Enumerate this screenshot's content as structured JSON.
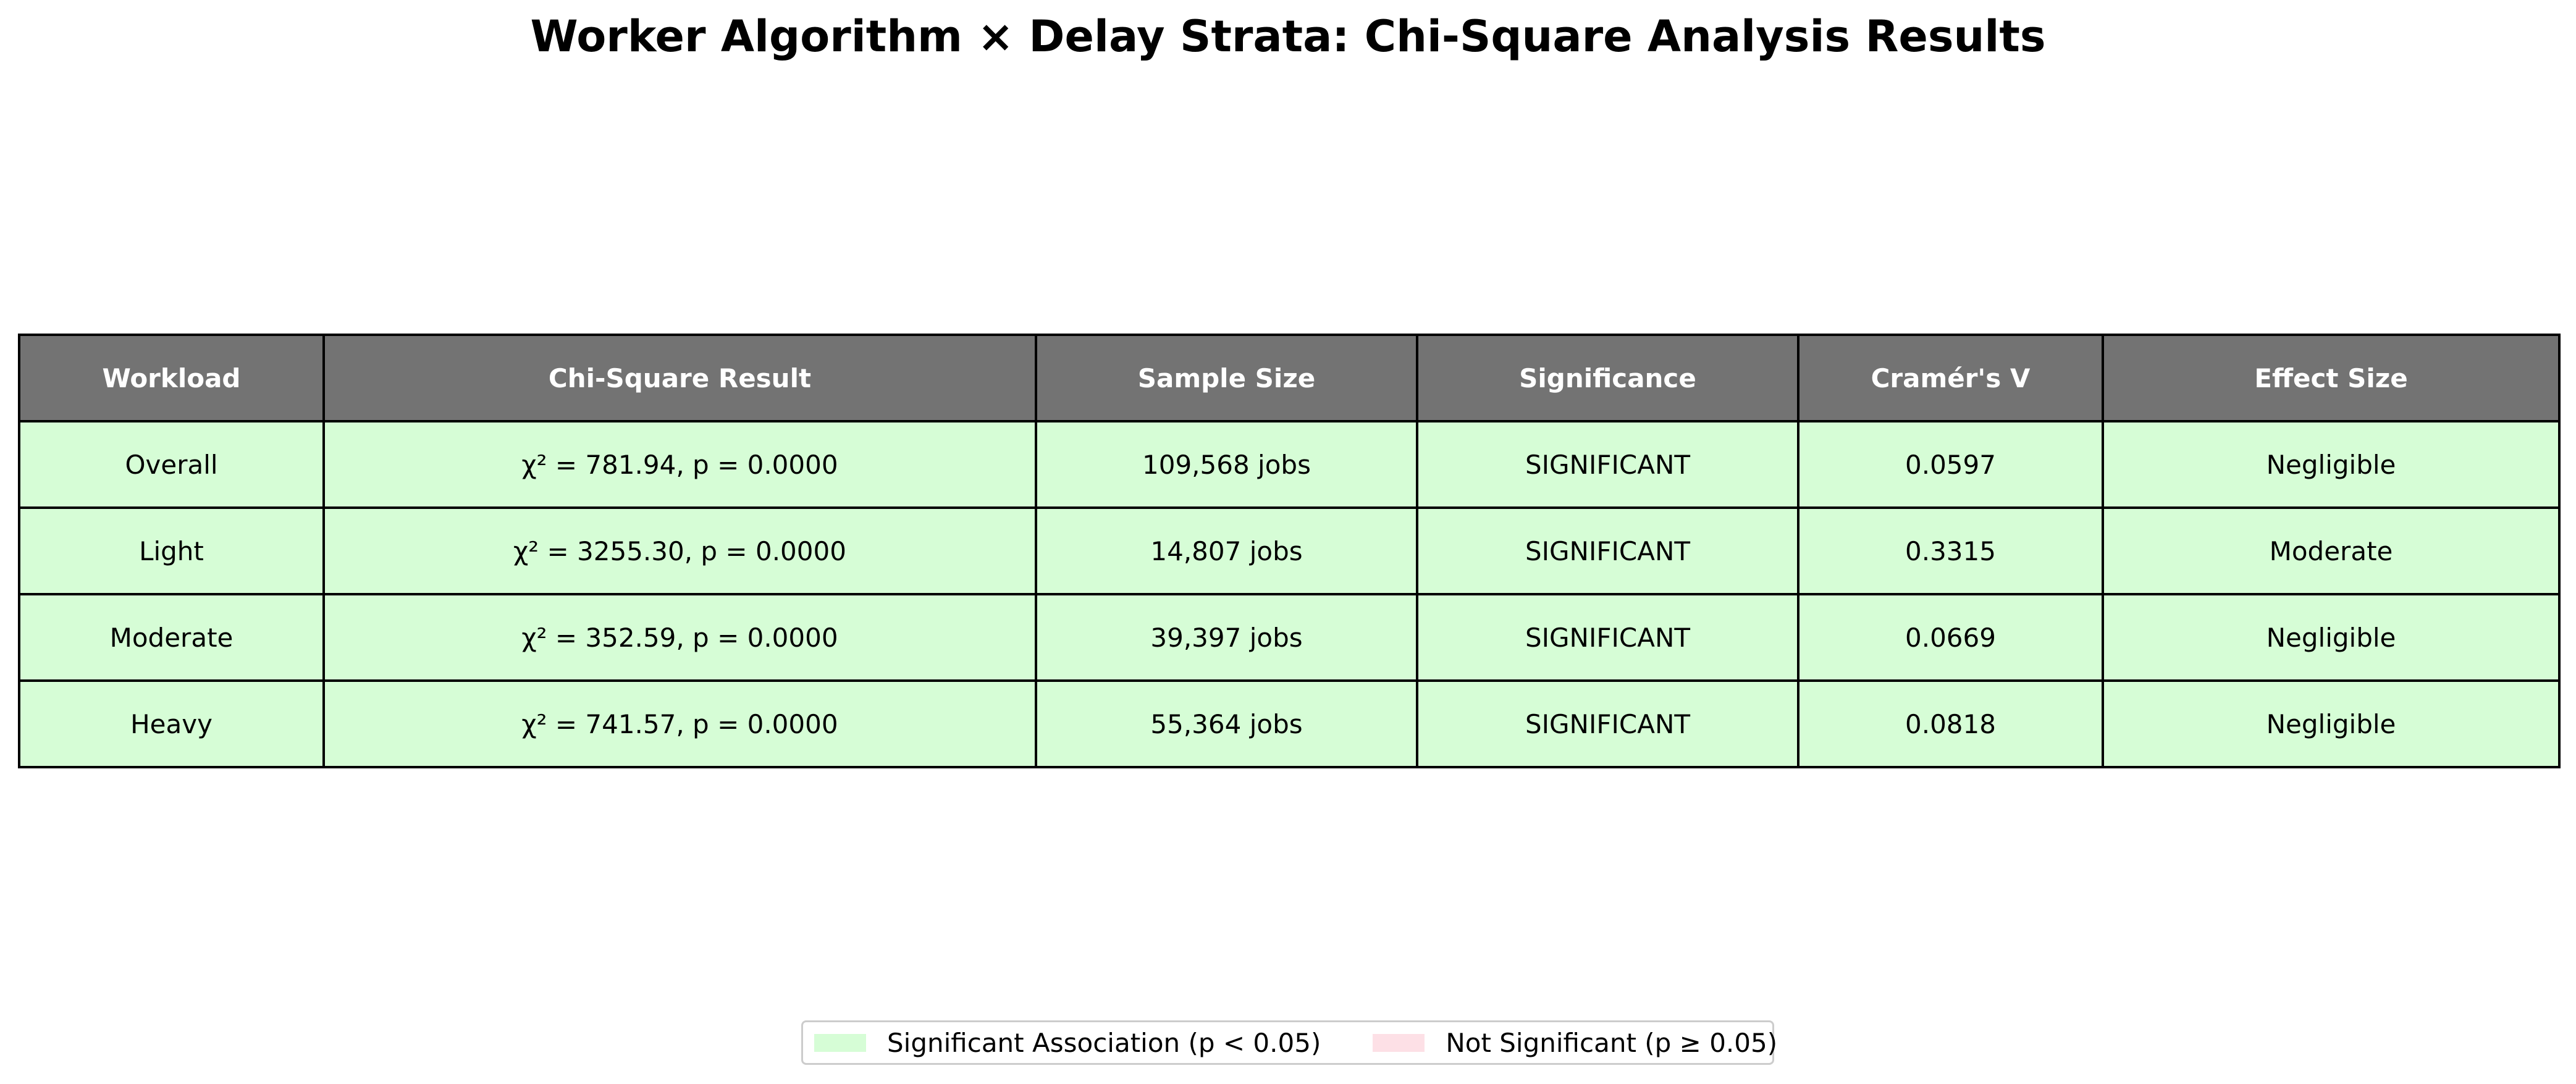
{
  "title": "Worker Algorithm × Delay Strata: Chi-Square Analysis Results",
  "colors": {
    "header_bg": "#737373",
    "header_text": "#ffffff",
    "significant": "#d6fdd6",
    "not_significant": "#fde0e6",
    "border": "#000000"
  },
  "chart_data": {
    "type": "table",
    "title": "Worker Algorithm × Delay Strata: Chi-Square Analysis Results",
    "columns": [
      "Workload",
      "Chi-Square Result",
      "Sample Size",
      "Significance",
      "Cramér's V",
      "Effect Size"
    ],
    "rows": [
      {
        "workload": "Overall",
        "chi_square_result": "χ² = 781.94, p = 0.0000",
        "sample_size": "109,568 jobs",
        "significance": "SIGNIFICANT",
        "cramers_v": "0.0597",
        "effect_size": "Negligible",
        "status": "significant"
      },
      {
        "workload": "Light",
        "chi_square_result": "χ² = 3255.30, p = 0.0000",
        "sample_size": "14,807 jobs",
        "significance": "SIGNIFICANT",
        "cramers_v": "0.3315",
        "effect_size": "Moderate",
        "status": "significant"
      },
      {
        "workload": "Moderate",
        "chi_square_result": "χ² = 352.59, p = 0.0000",
        "sample_size": "39,397 jobs",
        "significance": "SIGNIFICANT",
        "cramers_v": "0.0669",
        "effect_size": "Negligible",
        "status": "significant"
      },
      {
        "workload": "Heavy",
        "chi_square_result": "χ² = 741.57, p = 0.0000",
        "sample_size": "55,364 jobs",
        "significance": "SIGNIFICANT",
        "cramers_v": "0.0818",
        "effect_size": "Negligible",
        "status": "significant"
      }
    ],
    "legend": {
      "placement": "bottom-center",
      "entries": [
        {
          "label": "Significant Association (p < 0.05)",
          "color": "#d6fdd6"
        },
        {
          "label": "Not Significant (p ≥ 0.05)",
          "color": "#fde0e6"
        }
      ]
    }
  }
}
